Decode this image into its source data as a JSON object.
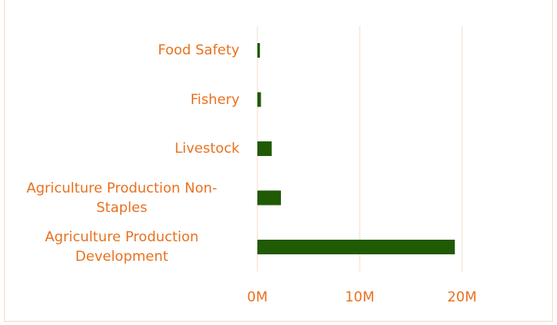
{
  "chart_data": {
    "type": "bar",
    "orientation": "horizontal",
    "categories": [
      "Food Safety",
      "Fishery",
      "Livestock",
      "Agriculture Production Non-Staples",
      "Agriculture Production Development"
    ],
    "values": [
      250000,
      350000,
      1400000,
      2300000,
      19300000
    ],
    "color": "#215a04",
    "xlim": [
      0,
      28000000
    ],
    "xticks": [
      {
        "value": 0,
        "label": "0M"
      },
      {
        "value": 10000000,
        "label": "10M"
      },
      {
        "value": 20000000,
        "label": "20M"
      }
    ],
    "grid": true
  }
}
